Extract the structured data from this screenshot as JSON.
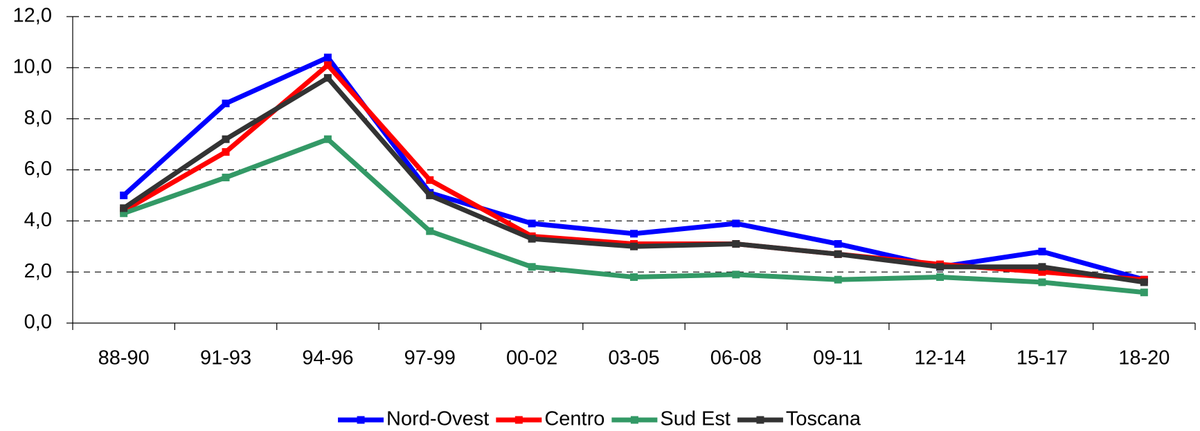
{
  "chart_data": {
    "type": "line",
    "categories": [
      "88-90",
      "91-93",
      "94-96",
      "97-99",
      "00-02",
      "03-05",
      "06-08",
      "09-11",
      "12-14",
      "15-17",
      "18-20"
    ],
    "series": [
      {
        "name": "Nord-Ovest",
        "color": "#0000ff",
        "values": [
          5.0,
          8.6,
          10.4,
          5.1,
          3.9,
          3.5,
          3.9,
          3.1,
          2.2,
          2.8,
          1.7
        ]
      },
      {
        "name": "Centro",
        "color": "#ff0000",
        "values": [
          4.4,
          6.7,
          10.1,
          5.6,
          3.4,
          3.1,
          3.1,
          2.7,
          2.3,
          2.0,
          1.7
        ]
      },
      {
        "name": "Sud Est",
        "color": "#339966",
        "values": [
          4.3,
          5.7,
          7.2,
          3.6,
          2.2,
          1.8,
          1.9,
          1.7,
          1.8,
          1.6,
          1.2
        ]
      },
      {
        "name": "Toscana",
        "color": "#333333",
        "values": [
          4.5,
          7.2,
          9.6,
          5.0,
          3.3,
          3.0,
          3.1,
          2.7,
          2.2,
          2.2,
          1.6
        ]
      }
    ],
    "ylim": [
      0,
      12
    ],
    "yticks": [
      {
        "value": 0,
        "label": "0,0"
      },
      {
        "value": 2,
        "label": "2,0"
      },
      {
        "value": 4,
        "label": "4,0"
      },
      {
        "value": 6,
        "label": "6,0"
      },
      {
        "value": 8,
        "label": "8,0"
      },
      {
        "value": 10,
        "label": "10,0"
      },
      {
        "value": 12,
        "label": "12,0"
      }
    ],
    "grid": true,
    "legend": "bottom"
  }
}
